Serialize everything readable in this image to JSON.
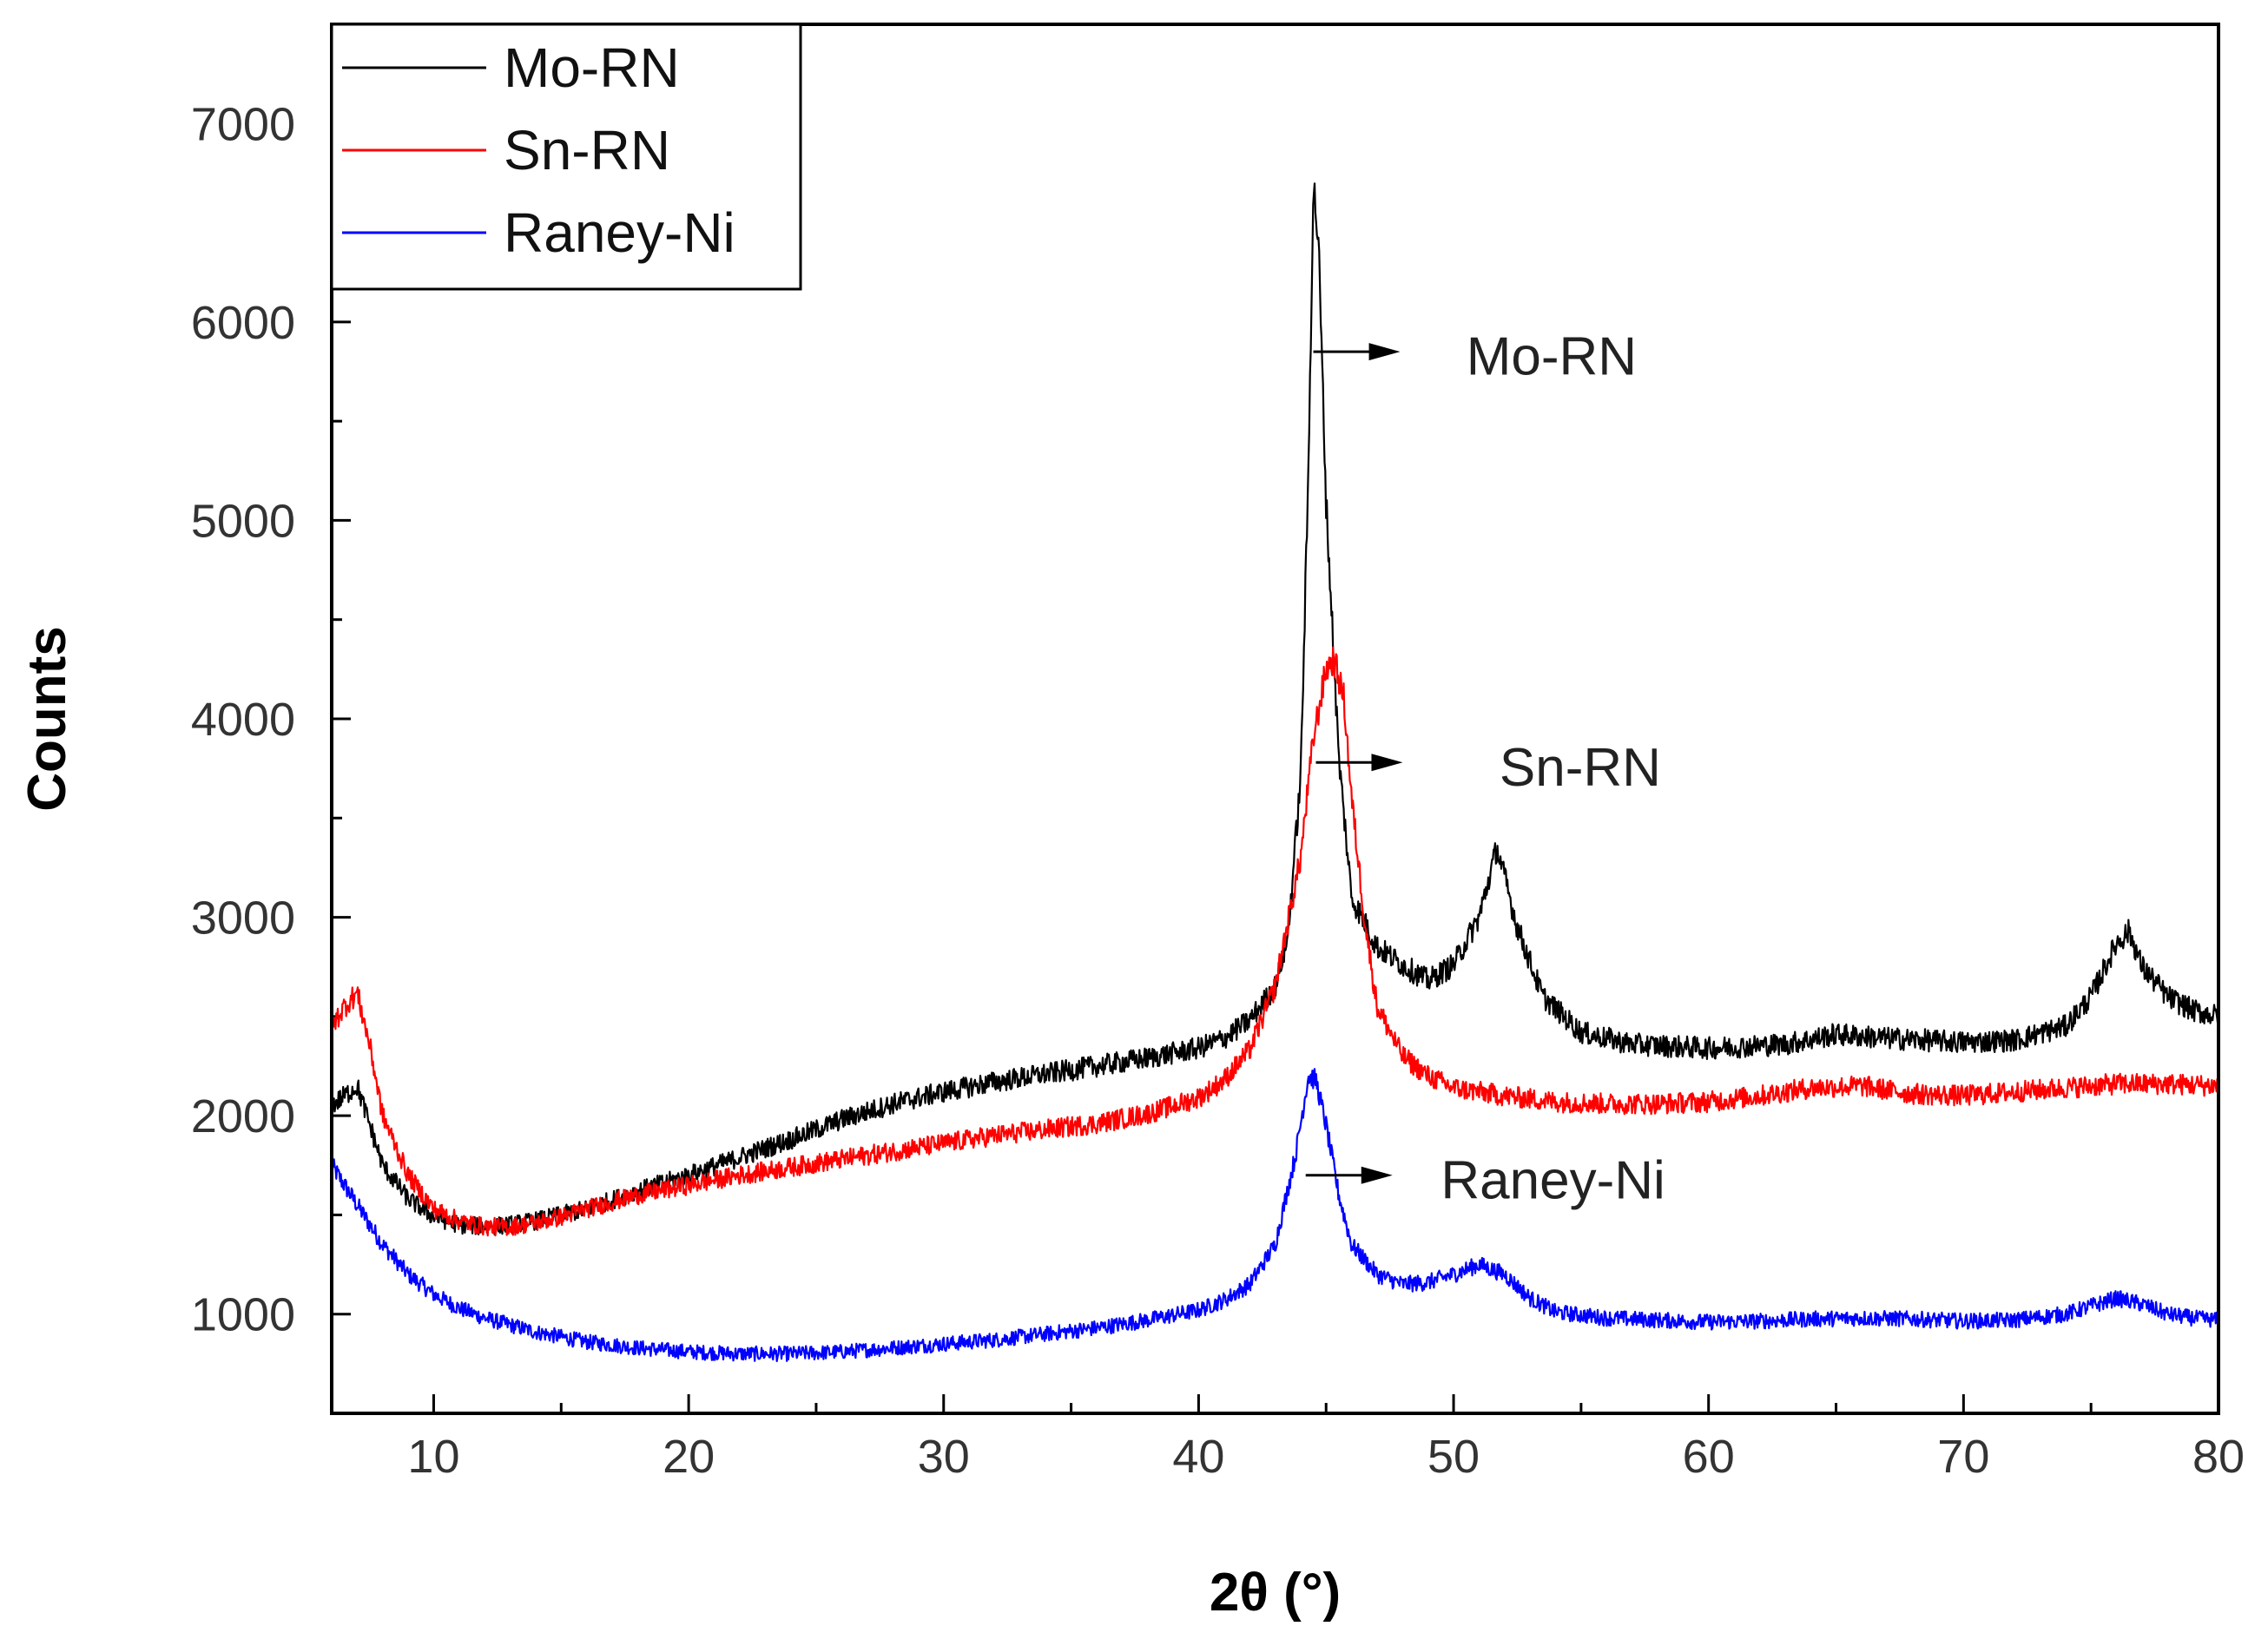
{
  "chart_data": {
    "type": "line",
    "title": "",
    "xlabel": "2θ (°)",
    "ylabel": "Counts",
    "xlim": [
      6,
      80
    ],
    "ylim": [
      500,
      7500
    ],
    "xticks": [
      10,
      20,
      30,
      40,
      50,
      60,
      70,
      80
    ],
    "yticks": [
      1000,
      2000,
      3000,
      4000,
      5000,
      6000,
      7000
    ],
    "grid": false,
    "legend_position": "top-left",
    "series": [
      {
        "name": "Mo-RN",
        "color": "#000000",
        "points": [
          [
            6,
            2050
          ],
          [
            6.5,
            2100
          ],
          [
            7,
            2150
          ],
          [
            7.5,
            1950
          ],
          [
            8,
            1750
          ],
          [
            9,
            1580
          ],
          [
            10,
            1490
          ],
          [
            11,
            1450
          ],
          [
            12,
            1440
          ],
          [
            13,
            1450
          ],
          [
            14,
            1470
          ],
          [
            15,
            1500
          ],
          [
            16,
            1530
          ],
          [
            18,
            1620
          ],
          [
            20,
            1700
          ],
          [
            22,
            1790
          ],
          [
            24,
            1880
          ],
          [
            26,
            1980
          ],
          [
            28,
            2060
          ],
          [
            30,
            2120
          ],
          [
            32,
            2170
          ],
          [
            34,
            2210
          ],
          [
            36,
            2250
          ],
          [
            38,
            2290
          ],
          [
            40,
            2340
          ],
          [
            41,
            2390
          ],
          [
            42,
            2480
          ],
          [
            43,
            2650
          ],
          [
            43.5,
            2900
          ],
          [
            44,
            3700
          ],
          [
            44.3,
            5200
          ],
          [
            44.5,
            6700
          ],
          [
            44.7,
            6400
          ],
          [
            45,
            5100
          ],
          [
            45.5,
            3800
          ],
          [
            46,
            3100
          ],
          [
            47,
            2850
          ],
          [
            48,
            2760
          ],
          [
            49,
            2680
          ],
          [
            50,
            2760
          ],
          [
            51,
            3000
          ],
          [
            51.7,
            3350
          ],
          [
            52.5,
            2950
          ],
          [
            53.5,
            2600
          ],
          [
            55,
            2420
          ],
          [
            57,
            2360
          ],
          [
            60,
            2340
          ],
          [
            63,
            2360
          ],
          [
            65,
            2410
          ],
          [
            67,
            2390
          ],
          [
            70,
            2370
          ],
          [
            72,
            2380
          ],
          [
            74,
            2450
          ],
          [
            75,
            2600
          ],
          [
            76,
            2870
          ],
          [
            76.5,
            2930
          ],
          [
            77,
            2750
          ],
          [
            78,
            2600
          ],
          [
            79,
            2530
          ],
          [
            80,
            2500
          ]
        ]
      },
      {
        "name": "Sn-RN",
        "color": "#ff0000",
        "points": [
          [
            6,
            2450
          ],
          [
            6.5,
            2550
          ],
          [
            7,
            2620
          ],
          [
            7.5,
            2350
          ],
          [
            8,
            2000
          ],
          [
            9,
            1700
          ],
          [
            10,
            1530
          ],
          [
            11,
            1470
          ],
          [
            12,
            1440
          ],
          [
            13,
            1440
          ],
          [
            14,
            1460
          ],
          [
            15,
            1490
          ],
          [
            16,
            1530
          ],
          [
            18,
            1600
          ],
          [
            20,
            1650
          ],
          [
            22,
            1700
          ],
          [
            24,
            1740
          ],
          [
            26,
            1780
          ],
          [
            28,
            1820
          ],
          [
            30,
            1860
          ],
          [
            32,
            1900
          ],
          [
            34,
            1930
          ],
          [
            36,
            1960
          ],
          [
            38,
            2010
          ],
          [
            40,
            2090
          ],
          [
            41,
            2180
          ],
          [
            42,
            2330
          ],
          [
            43,
            2650
          ],
          [
            44,
            3300
          ],
          [
            44.5,
            3900
          ],
          [
            45,
            4250
          ],
          [
            45.3,
            4300
          ],
          [
            45.7,
            4100
          ],
          [
            46,
            3600
          ],
          [
            46.5,
            3000
          ],
          [
            47,
            2550
          ],
          [
            48,
            2300
          ],
          [
            49,
            2200
          ],
          [
            50,
            2140
          ],
          [
            52,
            2100
          ],
          [
            54,
            2070
          ],
          [
            56,
            2060
          ],
          [
            58,
            2060
          ],
          [
            60,
            2070
          ],
          [
            62,
            2100
          ],
          [
            64,
            2140
          ],
          [
            66,
            2150
          ],
          [
            68,
            2110
          ],
          [
            70,
            2100
          ],
          [
            72,
            2120
          ],
          [
            74,
            2140
          ],
          [
            76,
            2160
          ],
          [
            78,
            2160
          ],
          [
            80,
            2150
          ]
        ]
      },
      {
        "name": "Raney-Ni",
        "color": "#0000ff",
        "points": [
          [
            6,
            1750
          ],
          [
            7,
            1550
          ],
          [
            8,
            1350
          ],
          [
            9,
            1200
          ],
          [
            10,
            1100
          ],
          [
            11,
            1030
          ],
          [
            12,
            980
          ],
          [
            14,
            910
          ],
          [
            16,
            860
          ],
          [
            18,
            830
          ],
          [
            20,
            810
          ],
          [
            22,
            800
          ],
          [
            24,
            800
          ],
          [
            26,
            810
          ],
          [
            28,
            830
          ],
          [
            30,
            850
          ],
          [
            32,
            870
          ],
          [
            34,
            900
          ],
          [
            36,
            930
          ],
          [
            38,
            970
          ],
          [
            40,
            1020
          ],
          [
            41,
            1070
          ],
          [
            42,
            1150
          ],
          [
            43,
            1350
          ],
          [
            43.8,
            1800
          ],
          [
            44.3,
            2200
          ],
          [
            44.6,
            2180
          ],
          [
            45,
            1950
          ],
          [
            45.5,
            1600
          ],
          [
            46,
            1350
          ],
          [
            47,
            1200
          ],
          [
            48,
            1150
          ],
          [
            49,
            1160
          ],
          [
            50,
            1200
          ],
          [
            51,
            1250
          ],
          [
            52,
            1200
          ],
          [
            53,
            1080
          ],
          [
            54,
            1010
          ],
          [
            56,
            980
          ],
          [
            58,
            970
          ],
          [
            60,
            960
          ],
          [
            62,
            965
          ],
          [
            64,
            975
          ],
          [
            66,
            980
          ],
          [
            68,
            975
          ],
          [
            70,
            965
          ],
          [
            72,
            970
          ],
          [
            74,
            1000
          ],
          [
            75,
            1040
          ],
          [
            76,
            1080
          ],
          [
            77,
            1050
          ],
          [
            78,
            1000
          ],
          [
            79,
            980
          ],
          [
            80,
            970
          ]
        ]
      }
    ],
    "annotations": [
      {
        "text": "Mo-RN",
        "arrow_from": [
          44.5,
          5850
        ],
        "label_at": [
          50.5,
          5830
        ]
      },
      {
        "text": "Sn-RN",
        "arrow_from": [
          44.6,
          3780
        ],
        "label_at": [
          51.8,
          3760
        ]
      },
      {
        "text": "Raney-Ni",
        "arrow_from": [
          44.2,
          1700
        ],
        "label_at": [
          49.5,
          1680
        ]
      }
    ]
  }
}
